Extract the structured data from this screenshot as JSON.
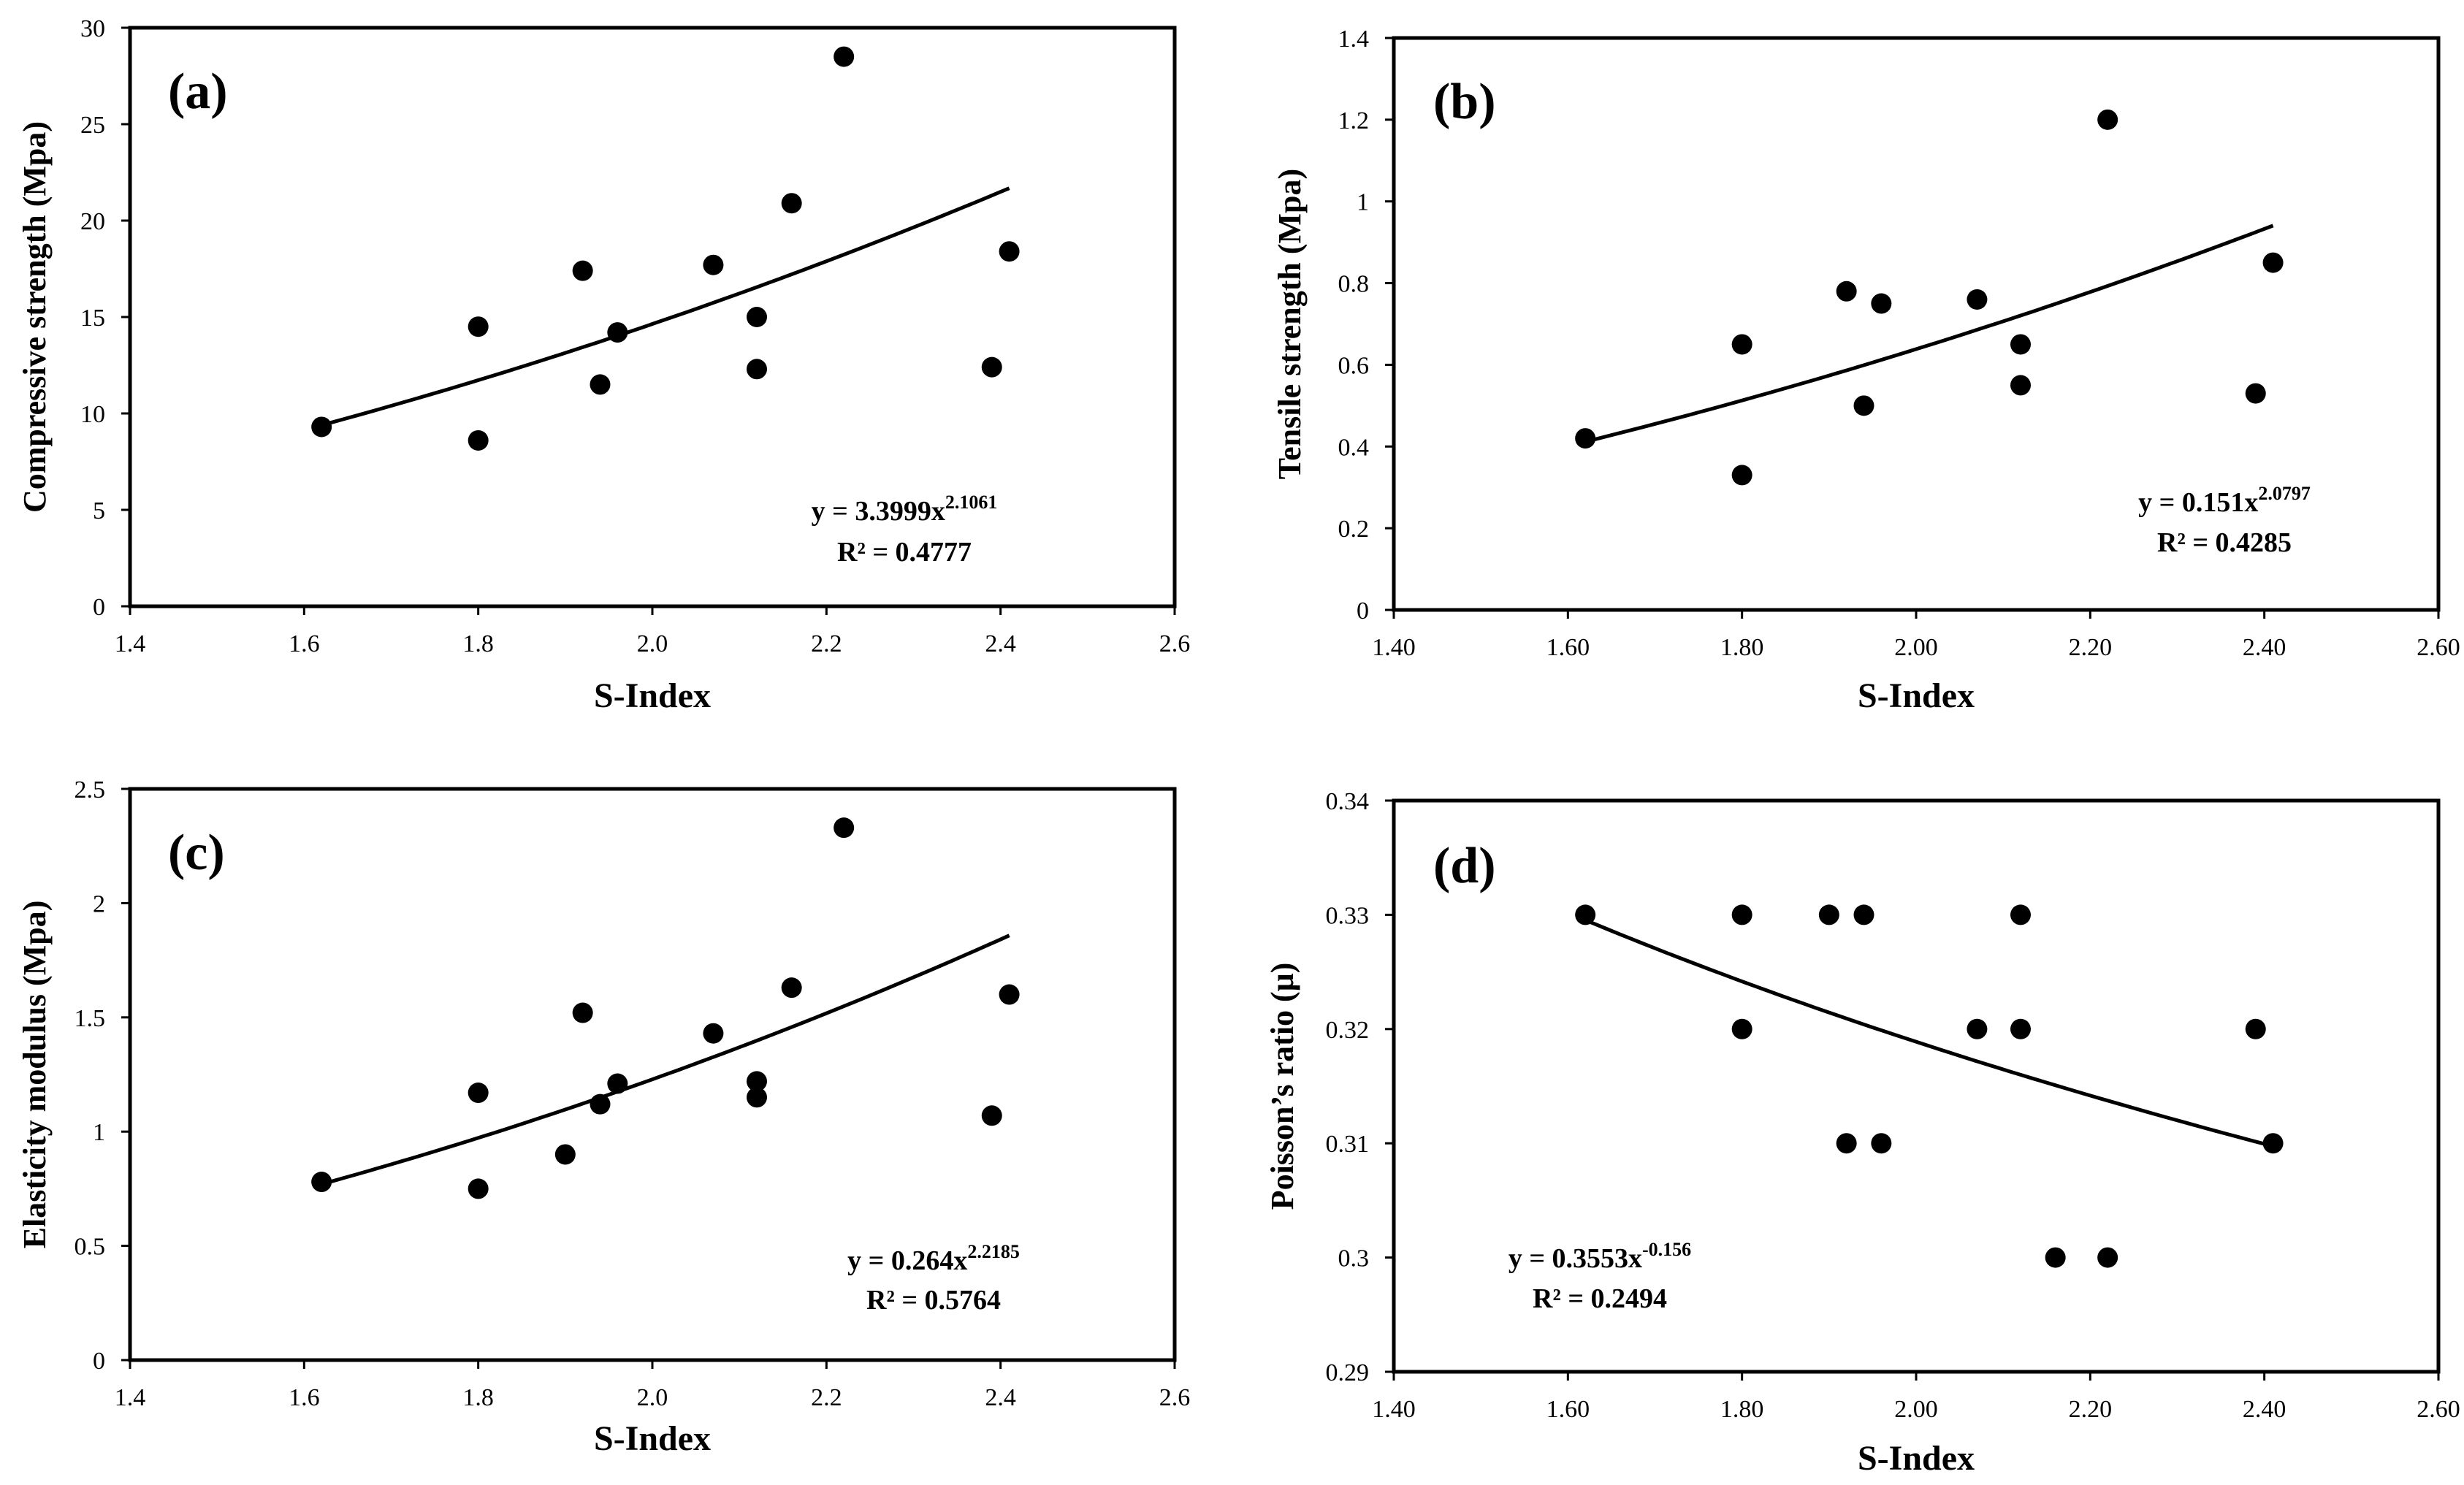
{
  "chart_data": [
    {
      "type": "scatter",
      "panel_label": "(a)",
      "xlabel": "S-Index",
      "ylabel": "Compressive strength (Mpa)",
      "xlim": [
        1.4,
        2.6
      ],
      "ylim": [
        0,
        30
      ],
      "x_ticks": [
        "1.4",
        "1.6",
        "1.8",
        "2.0",
        "2.2",
        "2.4",
        "2.6"
      ],
      "y_ticks": [
        "0",
        "5",
        "10",
        "15",
        "20",
        "25",
        "30"
      ],
      "x": [
        1.62,
        1.8,
        1.8,
        1.92,
        1.94,
        1.96,
        2.07,
        2.12,
        2.12,
        2.16,
        2.22,
        2.39,
        2.41
      ],
      "y": [
        9.3,
        14.5,
        8.6,
        17.4,
        11.5,
        14.2,
        17.7,
        12.3,
        15.0,
        20.9,
        28.5,
        12.4,
        18.4
      ],
      "trendline": {
        "coef": 3.3999,
        "exp": 2.1061,
        "x_range": [
          1.62,
          2.41
        ]
      },
      "equation_base": "y = 3.3999x",
      "equation_exp": "2.1061",
      "r2": "R² = 0.4777"
    },
    {
      "type": "scatter",
      "panel_label": "(b)",
      "xlabel": "S-Index",
      "ylabel": "Tensile strength (Mpa)",
      "xlim": [
        1.4,
        2.6
      ],
      "ylim": [
        0,
        1.4
      ],
      "x_ticks": [
        "1.40",
        "1.60",
        "1.80",
        "2.00",
        "2.20",
        "2.40",
        "2.60"
      ],
      "y_ticks": [
        "0",
        "0.2",
        "0.4",
        "0.6",
        "0.8",
        "1",
        "1.2",
        "1.4"
      ],
      "x": [
        1.62,
        1.8,
        1.8,
        1.92,
        1.94,
        1.96,
        2.07,
        2.12,
        2.12,
        2.22,
        2.39,
        2.41
      ],
      "y": [
        0.42,
        0.65,
        0.33,
        0.78,
        0.5,
        0.75,
        0.76,
        0.55,
        0.65,
        1.2,
        0.53,
        0.85
      ],
      "trendline": {
        "coef": 0.151,
        "exp": 2.0797,
        "x_range": [
          1.62,
          2.41
        ]
      },
      "equation_base": "y = 0.151x",
      "equation_exp": "2.0797",
      "r2": "R² = 0.4285"
    },
    {
      "type": "scatter",
      "panel_label": "(c)",
      "xlabel": "S-Index",
      "ylabel": "Elasticity modulus (Mpa)",
      "xlim": [
        1.4,
        2.6
      ],
      "ylim": [
        0,
        2.5
      ],
      "x_ticks": [
        "1.4",
        "1.6",
        "1.8",
        "2.0",
        "2.2",
        "2.4",
        "2.6"
      ],
      "y_ticks": [
        "0",
        "0.5",
        "1",
        "1.5",
        "2",
        "2.5"
      ],
      "x": [
        1.62,
        1.8,
        1.8,
        1.9,
        1.92,
        1.94,
        1.96,
        2.07,
        2.12,
        2.12,
        2.16,
        2.22,
        2.39,
        2.41
      ],
      "y": [
        0.78,
        1.17,
        0.75,
        0.9,
        1.52,
        1.12,
        1.21,
        1.43,
        1.22,
        1.15,
        1.63,
        2.33,
        1.07,
        1.6
      ],
      "trendline": {
        "coef": 0.264,
        "exp": 2.2185,
        "x_range": [
          1.62,
          2.41
        ]
      },
      "equation_base": "y = 0.264x",
      "equation_exp": "2.2185",
      "r2": "R² = 0.5764"
    },
    {
      "type": "scatter",
      "panel_label": "(d)",
      "xlabel": "S-Index",
      "ylabel": "Poisson’s ratio (μ)",
      "xlim": [
        1.4,
        2.6
      ],
      "ylim": [
        0.29,
        0.34
      ],
      "x_ticks": [
        "1.40",
        "1.60",
        "1.80",
        "2.00",
        "2.20",
        "2.40",
        "2.60"
      ],
      "y_ticks": [
        "0.29",
        "0.3",
        "0.31",
        "0.32",
        "0.33",
        "0.34"
      ],
      "x": [
        1.62,
        1.8,
        1.8,
        1.9,
        1.92,
        1.94,
        1.96,
        2.07,
        2.12,
        2.12,
        2.16,
        2.22,
        2.39,
        2.41
      ],
      "y": [
        0.33,
        0.33,
        0.32,
        0.33,
        0.31,
        0.33,
        0.31,
        0.32,
        0.32,
        0.33,
        0.3,
        0.3,
        0.32,
        0.31
      ],
      "trendline": {
        "coef": 0.3553,
        "exp": -0.156,
        "x_range": [
          1.62,
          2.41
        ]
      },
      "equation_base": "y = 0.3553x",
      "equation_exp": "-0.156",
      "r2": "R² = 0.2494"
    }
  ]
}
